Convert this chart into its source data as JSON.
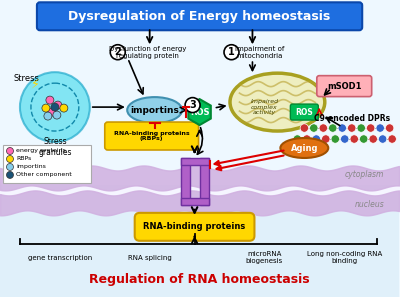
{
  "title_top": "Dysregulation of Energy homeostasis",
  "title_bottom": "Regulation of RNA homeostasis",
  "title_top_bg": "#1E6EE0",
  "title_top_fg": "#FFFFFF",
  "title_bottom_fg": "#CC0000",
  "bg_color": "#EEF8FF",
  "membrane_color": "#D0B0E0",
  "label_cytoplasm": "cytoplasm",
  "label_nucleus": "nucleus",
  "bottom_labels": [
    "gene transcription",
    "RNA splicing",
    "microRNA\nbiogenesis",
    "Long non-coding RNA\nbinding"
  ],
  "stress_label": "Stress",
  "stress_granules_label": "Stress\ngranules",
  "legend_items": [
    "energy proteins",
    "RBPs",
    "importins",
    "Other component"
  ],
  "legend_colors": [
    "#FF69B4",
    "#FFD700",
    "#87CEEB",
    "#1A5276"
  ],
  "label1": "Impairment of\nmitochondria",
  "label2": "Dysfunction of energy\nregulating protein",
  "importins_label": "importins",
  "rbp_label": "RNA-binding proteins\n(RBPs)",
  "ros_label": "ROS",
  "mito_inner_label": "Impaired\ncomplex\nactivity",
  "ros2_label": "ROS",
  "msod1_label": "mSOD1",
  "c9_label": "C9-encoded DPRs",
  "aging_label": "Aging",
  "nuclear_rbp_label": "RNA-binding proteins"
}
